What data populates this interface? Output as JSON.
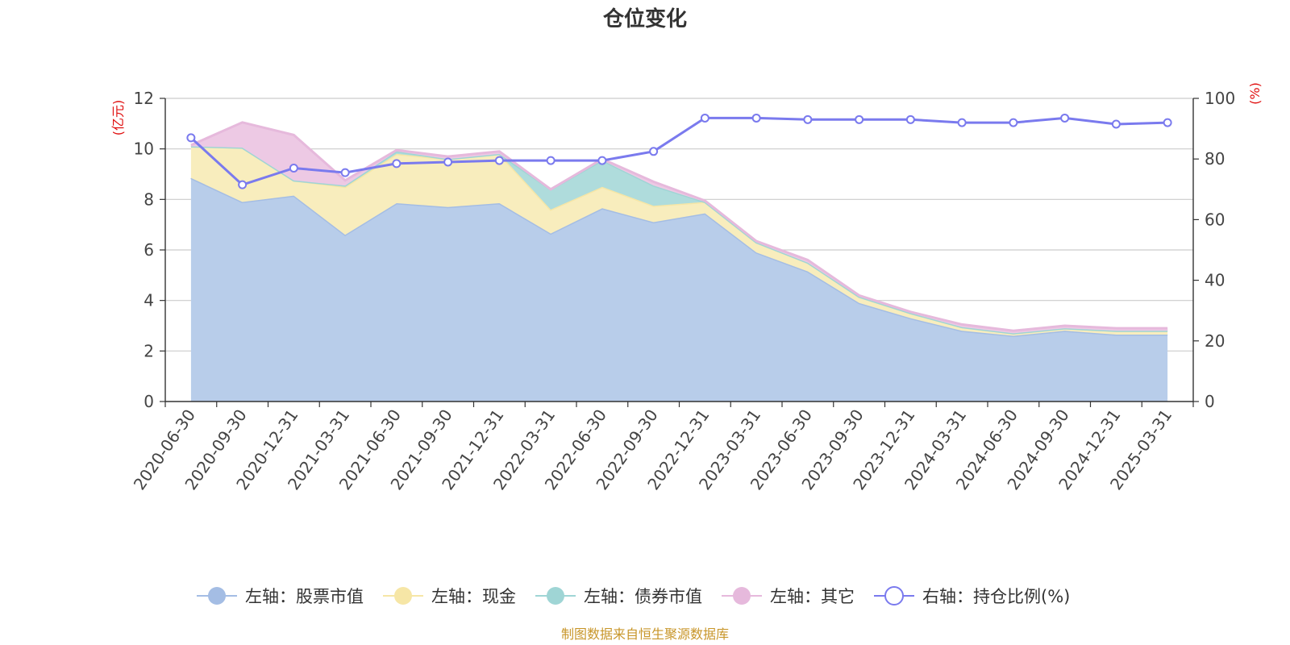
{
  "chart_data": {
    "type": "area",
    "title": "仓位变化",
    "categories": [
      "2020-06-30",
      "2020-09-30",
      "2020-12-31",
      "2021-03-31",
      "2021-06-30",
      "2021-09-30",
      "2021-12-31",
      "2022-03-31",
      "2022-06-30",
      "2022-09-30",
      "2022-12-31",
      "2023-03-31",
      "2023-06-30",
      "2023-09-30",
      "2023-12-31",
      "2024-03-31",
      "2024-06-30",
      "2024-09-30",
      "2024-12-31",
      "2025-03-31"
    ],
    "left_axis": {
      "unit": "(亿元)",
      "range": [
        0,
        12
      ],
      "ticks": [
        "0",
        "2",
        "4",
        "6",
        "8",
        "10",
        "12"
      ]
    },
    "right_axis": {
      "unit": "(%)",
      "range": [
        0,
        100
      ],
      "ticks": [
        "0",
        "20",
        "40",
        "60",
        "80",
        "100"
      ]
    },
    "stacked": true,
    "grid": true,
    "series": [
      {
        "name": "左轴：股票市值",
        "axis": "left",
        "color": "#a4bde4",
        "fill": "#b8cdea",
        "values": [
          8.85,
          7.9,
          8.15,
          6.6,
          7.85,
          7.7,
          7.85,
          6.65,
          7.65,
          7.1,
          7.45,
          5.9,
          5.15,
          3.9,
          3.3,
          2.8,
          2.6,
          2.8,
          2.65,
          2.65
        ]
      },
      {
        "name": "左轴：现金",
        "axis": "left",
        "color": "#f6e6a6",
        "fill": "#f8edbd",
        "values": [
          1.25,
          2.15,
          0.6,
          1.9,
          1.95,
          1.9,
          1.95,
          0.95,
          0.85,
          0.65,
          0.45,
          0.4,
          0.35,
          0.25,
          0.2,
          0.15,
          0.1,
          0.1,
          0.15,
          0.15
        ]
      },
      {
        "name": "左轴：债券市值",
        "axis": "left",
        "color": "#9fd5d5",
        "fill": "#afdcdc",
        "values": [
          0,
          0,
          0,
          0.05,
          0.1,
          0,
          0,
          0.8,
          1.05,
          0.8,
          0,
          0,
          0,
          0,
          0,
          0,
          0,
          0,
          0,
          0
        ]
      },
      {
        "name": "左轴：其它",
        "axis": "left",
        "color": "#e6b9dc",
        "fill": "#edc9e4",
        "values": [
          0.05,
          1.0,
          1.8,
          0.2,
          0.05,
          0.1,
          0.1,
          0,
          0.05,
          0.15,
          0.05,
          0.05,
          0.1,
          0.05,
          0.05,
          0.1,
          0.1,
          0.1,
          0.1,
          0.1
        ]
      },
      {
        "name": "右轴：持仓比例(%)",
        "axis": "right",
        "color": "#7a7aee",
        "values": [
          87,
          71.5,
          77,
          75.5,
          78.5,
          79,
          79.5,
          79.5,
          79.5,
          82.5,
          93.5,
          93.5,
          93,
          93,
          93,
          92,
          92,
          93.5,
          91.5,
          92
        ]
      }
    ],
    "legend": {
      "position": "bottom"
    }
  },
  "source_note": "制图数据来自恒生聚源数据库"
}
